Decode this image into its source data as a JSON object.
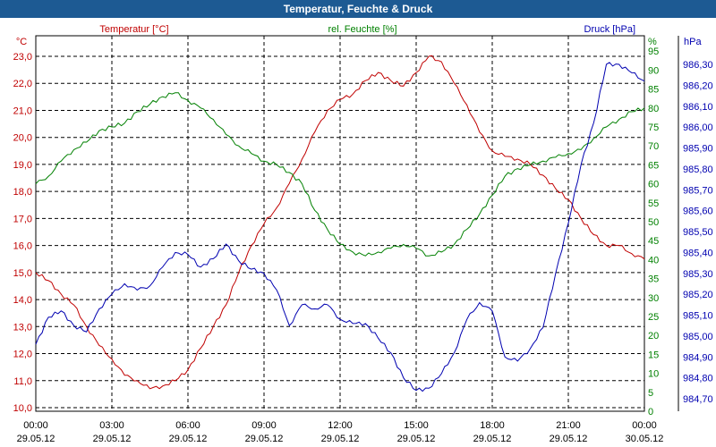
{
  "window": {
    "title": "Temperatur, Feuchte & Druck"
  },
  "colors": {
    "temperature": "#c00000",
    "humidity": "#008000",
    "pressure": "#0000b0",
    "grid": "#000000",
    "axis_text": "#000000"
  },
  "chart_data": {
    "type": "line",
    "title": "Temperatur, Feuchte & Druck",
    "x_time_range_hours": [
      0,
      24
    ],
    "x_ticks": [
      {
        "h": 0,
        "time": "00:00",
        "date": "29.05.12"
      },
      {
        "h": 3,
        "time": "03:00",
        "date": "29.05.12"
      },
      {
        "h": 6,
        "time": "06:00",
        "date": "29.05.12"
      },
      {
        "h": 9,
        "time": "09:00",
        "date": "29.05.12"
      },
      {
        "h": 12,
        "time": "12:00",
        "date": "29.05.12"
      },
      {
        "h": 15,
        "time": "15:00",
        "date": "29.05.12"
      },
      {
        "h": 18,
        "time": "18:00",
        "date": "29.05.12"
      },
      {
        "h": 21,
        "time": "21:00",
        "date": "29.05.12"
      },
      {
        "h": 24,
        "time": "00:00",
        "date": "30.05.12"
      }
    ],
    "axes": {
      "temperature": {
        "label": "Temperatur [°C]",
        "unit": "°C",
        "range": [
          10.0,
          23.0
        ],
        "ticks": [
          "10,0",
          "11,0",
          "12,0",
          "13,0",
          "14,0",
          "15,0",
          "16,0",
          "17,0",
          "18,0",
          "19,0",
          "20,0",
          "21,0",
          "22,0",
          "23,0"
        ]
      },
      "humidity": {
        "label": "rel. Feuchte [%]",
        "unit": "%",
        "range": [
          0,
          95
        ],
        "ticks": [
          "0",
          "5",
          "10",
          "15",
          "20",
          "25",
          "30",
          "35",
          "40",
          "45",
          "50",
          "55",
          "60",
          "65",
          "70",
          "75",
          "80",
          "85",
          "90",
          "95"
        ]
      },
      "pressure": {
        "label": "Druck [hPa]",
        "unit": "hPa",
        "range": [
          984.6,
          986.4
        ],
        "ticks": [
          "984,70",
          "984,80",
          "984,90",
          "985,00",
          "985,10",
          "985,20",
          "985,30",
          "985,40",
          "985,50",
          "985,60",
          "985,70",
          "985,80",
          "985,90",
          "986,00",
          "986,10",
          "986,20",
          "986,30"
        ]
      }
    },
    "series": [
      {
        "name": "Temperatur [°C]",
        "axis": "temperature",
        "x": [
          0,
          0.5,
          1,
          1.5,
          2,
          2.5,
          3,
          3.5,
          4,
          4.5,
          5,
          5.5,
          6,
          6.5,
          7,
          7.5,
          8,
          8.5,
          9,
          9.5,
          10,
          10.5,
          11,
          11.5,
          12,
          12.5,
          13,
          13.5,
          14,
          14.5,
          15,
          15.5,
          16,
          16.5,
          17,
          17.5,
          18,
          18.5,
          19,
          19.5,
          20,
          20.5,
          21,
          21.5,
          22,
          22.5,
          23,
          23.5,
          24
        ],
        "values": [
          15.0,
          14.7,
          14.2,
          13.8,
          13.0,
          12.3,
          11.8,
          11.2,
          11.0,
          10.7,
          10.8,
          11.0,
          11.4,
          12.2,
          13.0,
          13.8,
          15.0,
          16.0,
          16.8,
          17.4,
          18.3,
          19.2,
          20.2,
          21.0,
          21.4,
          21.6,
          22.1,
          22.4,
          22.1,
          21.9,
          22.4,
          23.0,
          22.8,
          22.0,
          21.2,
          20.2,
          19.5,
          19.3,
          19.2,
          19.0,
          18.6,
          18.1,
          17.7,
          17.0,
          16.4,
          16.0,
          16.0,
          15.7,
          15.5
        ]
      },
      {
        "name": "rel. Feuchte [%]",
        "axis": "humidity",
        "x": [
          0,
          0.5,
          1,
          1.5,
          2,
          2.5,
          3,
          3.5,
          4,
          4.5,
          5,
          5.5,
          6,
          6.5,
          7,
          7.5,
          8,
          8.5,
          9,
          9.5,
          10,
          10.5,
          11,
          11.5,
          12,
          12.5,
          13,
          13.5,
          14,
          14.5,
          15,
          15.5,
          16,
          16.5,
          17,
          17.5,
          18,
          18.5,
          19,
          19.5,
          20,
          20.5,
          21,
          21.5,
          22,
          22.5,
          23,
          23.5,
          24
        ],
        "values": [
          60,
          62,
          66,
          69,
          71,
          74,
          75,
          76,
          79,
          81,
          83,
          84,
          82,
          80,
          77,
          73,
          70,
          68,
          66,
          65,
          63,
          60,
          53,
          48,
          44,
          42,
          41,
          42,
          43,
          44,
          43,
          41,
          42,
          44,
          48,
          52,
          57,
          62,
          64,
          65,
          66,
          67,
          68,
          69,
          72,
          75,
          77,
          79,
          80
        ]
      },
      {
        "name": "Druck [hPa]",
        "axis": "pressure",
        "x": [
          0,
          0.5,
          1,
          1.5,
          2,
          2.5,
          3,
          3.5,
          4,
          4.5,
          5,
          5.5,
          6,
          6.5,
          7,
          7.5,
          8,
          8.5,
          9,
          9.5,
          10,
          10.5,
          11,
          11.5,
          12,
          12.5,
          13,
          13.5,
          14,
          14.5,
          15,
          15.5,
          16,
          16.5,
          17,
          17.5,
          18,
          18.5,
          19,
          19.5,
          20,
          20.5,
          21,
          21.5,
          22,
          22.5,
          23,
          23.5,
          24
        ],
        "values": [
          984.96,
          985.09,
          985.12,
          985.05,
          985.02,
          985.13,
          985.2,
          985.25,
          985.22,
          985.24,
          985.33,
          985.4,
          985.39,
          985.33,
          985.37,
          985.44,
          985.36,
          985.32,
          985.3,
          985.22,
          985.05,
          985.15,
          985.13,
          985.15,
          985.08,
          985.06,
          985.06,
          984.99,
          984.92,
          984.8,
          984.74,
          984.75,
          984.82,
          984.92,
          985.08,
          985.16,
          985.12,
          984.9,
          984.88,
          984.94,
          985.04,
          985.3,
          985.54,
          985.82,
          986.02,
          986.3,
          986.3,
          986.26,
          986.22
        ]
      }
    ]
  }
}
